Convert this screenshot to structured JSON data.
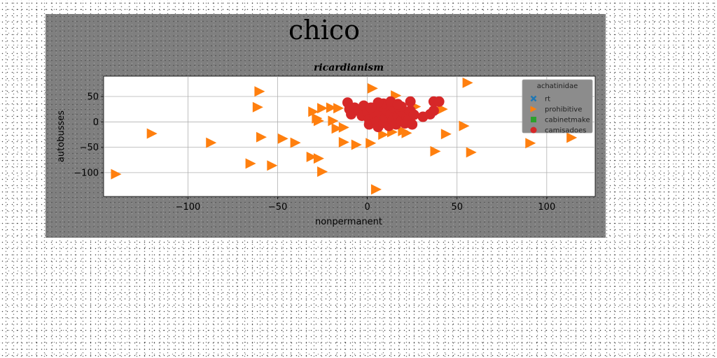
{
  "chart_data": {
    "type": "scatter",
    "suptitle": "chico",
    "title": "ricardianism",
    "xlabel": "nonpermanent",
    "ylabel": "autobusses",
    "xlim": [
      -147,
      127
    ],
    "ylim": [
      -147,
      90
    ],
    "xticks": [
      -100,
      -50,
      0,
      50,
      100
    ],
    "yticks": [
      -100,
      -50,
      0,
      50
    ],
    "grid": true,
    "legend_title": "achatinidae",
    "legend_position": "top-right",
    "series": [
      {
        "name": "rt",
        "marker": "x",
        "color": "#1f77b4",
        "points": []
      },
      {
        "name": "prohibitive",
        "marker": "triangle-right",
        "color": "#ff7f0e",
        "points": [
          [
            -140,
            -103
          ],
          [
            -120,
            -23
          ],
          [
            -87,
            -41
          ],
          [
            -65,
            -82
          ],
          [
            -60,
            60
          ],
          [
            -61,
            29
          ],
          [
            -59,
            -30
          ],
          [
            -53,
            -86
          ],
          [
            -47,
            -33
          ],
          [
            -40,
            -41
          ],
          [
            -31,
            -69
          ],
          [
            -27,
            -72
          ],
          [
            -25,
            -98
          ],
          [
            -30,
            20
          ],
          [
            -25,
            27
          ],
          [
            -20,
            28
          ],
          [
            -16,
            27
          ],
          [
            -28,
            7
          ],
          [
            -27,
            2
          ],
          [
            -19,
            2
          ],
          [
            -17,
            -13
          ],
          [
            -13,
            -11
          ],
          [
            -13,
            -40
          ],
          [
            -6,
            -45
          ],
          [
            2,
            -42
          ],
          [
            3,
            66
          ],
          [
            5,
            -133
          ],
          [
            7,
            -4
          ],
          [
            9,
            -25
          ],
          [
            14,
            -20
          ],
          [
            16,
            52
          ],
          [
            20,
            -18
          ],
          [
            20,
            17
          ],
          [
            22,
            -22
          ],
          [
            24,
            5
          ],
          [
            27,
            30
          ],
          [
            38,
            -58
          ],
          [
            42,
            25
          ],
          [
            44,
            -24
          ],
          [
            54,
            -8
          ],
          [
            56,
            77
          ],
          [
            58,
            -60
          ],
          [
            91,
            -42
          ],
          [
            114,
            -31
          ]
        ]
      },
      {
        "name": "cabinetmake",
        "marker": "square",
        "color": "#2ca02c",
        "points": [
          [
            5,
            3
          ],
          [
            8,
            7
          ],
          [
            10,
            10
          ],
          [
            12,
            14
          ],
          [
            14,
            17
          ],
          [
            16,
            19
          ],
          [
            18,
            22
          ],
          [
            15,
            24
          ],
          [
            12,
            8
          ]
        ]
      },
      {
        "name": "camisadoes",
        "marker": "circle",
        "color": "#d62728",
        "points": [
          [
            -11,
            38
          ],
          [
            -10,
            25
          ],
          [
            -9,
            15
          ],
          [
            -7,
            28
          ],
          [
            -5,
            22
          ],
          [
            -3,
            12
          ],
          [
            -2,
            32
          ],
          [
            0,
            20
          ],
          [
            1,
            5
          ],
          [
            1,
            -5
          ],
          [
            3,
            25
          ],
          [
            4,
            12
          ],
          [
            5,
            0
          ],
          [
            6,
            -10
          ],
          [
            7,
            18
          ],
          [
            8,
            30
          ],
          [
            9,
            -2
          ],
          [
            10,
            8
          ],
          [
            11,
            22
          ],
          [
            12,
            -8
          ],
          [
            13,
            15
          ],
          [
            14,
            3
          ],
          [
            15,
            28
          ],
          [
            16,
            -5
          ],
          [
            17,
            12
          ],
          [
            18,
            25
          ],
          [
            19,
            2
          ],
          [
            20,
            18
          ],
          [
            21,
            -3
          ],
          [
            22,
            10
          ],
          [
            23,
            5
          ],
          [
            24,
            22
          ],
          [
            25,
            -5
          ],
          [
            24,
            40
          ],
          [
            26,
            14
          ],
          [
            9,
            36
          ],
          [
            13,
            40
          ],
          [
            6,
            38
          ],
          [
            2,
            28
          ],
          [
            31,
            10
          ],
          [
            35,
            15
          ],
          [
            37,
            22
          ],
          [
            37,
            40
          ],
          [
            40,
            40
          ],
          [
            19,
            30
          ],
          [
            17,
            35
          ]
        ]
      }
    ]
  }
}
